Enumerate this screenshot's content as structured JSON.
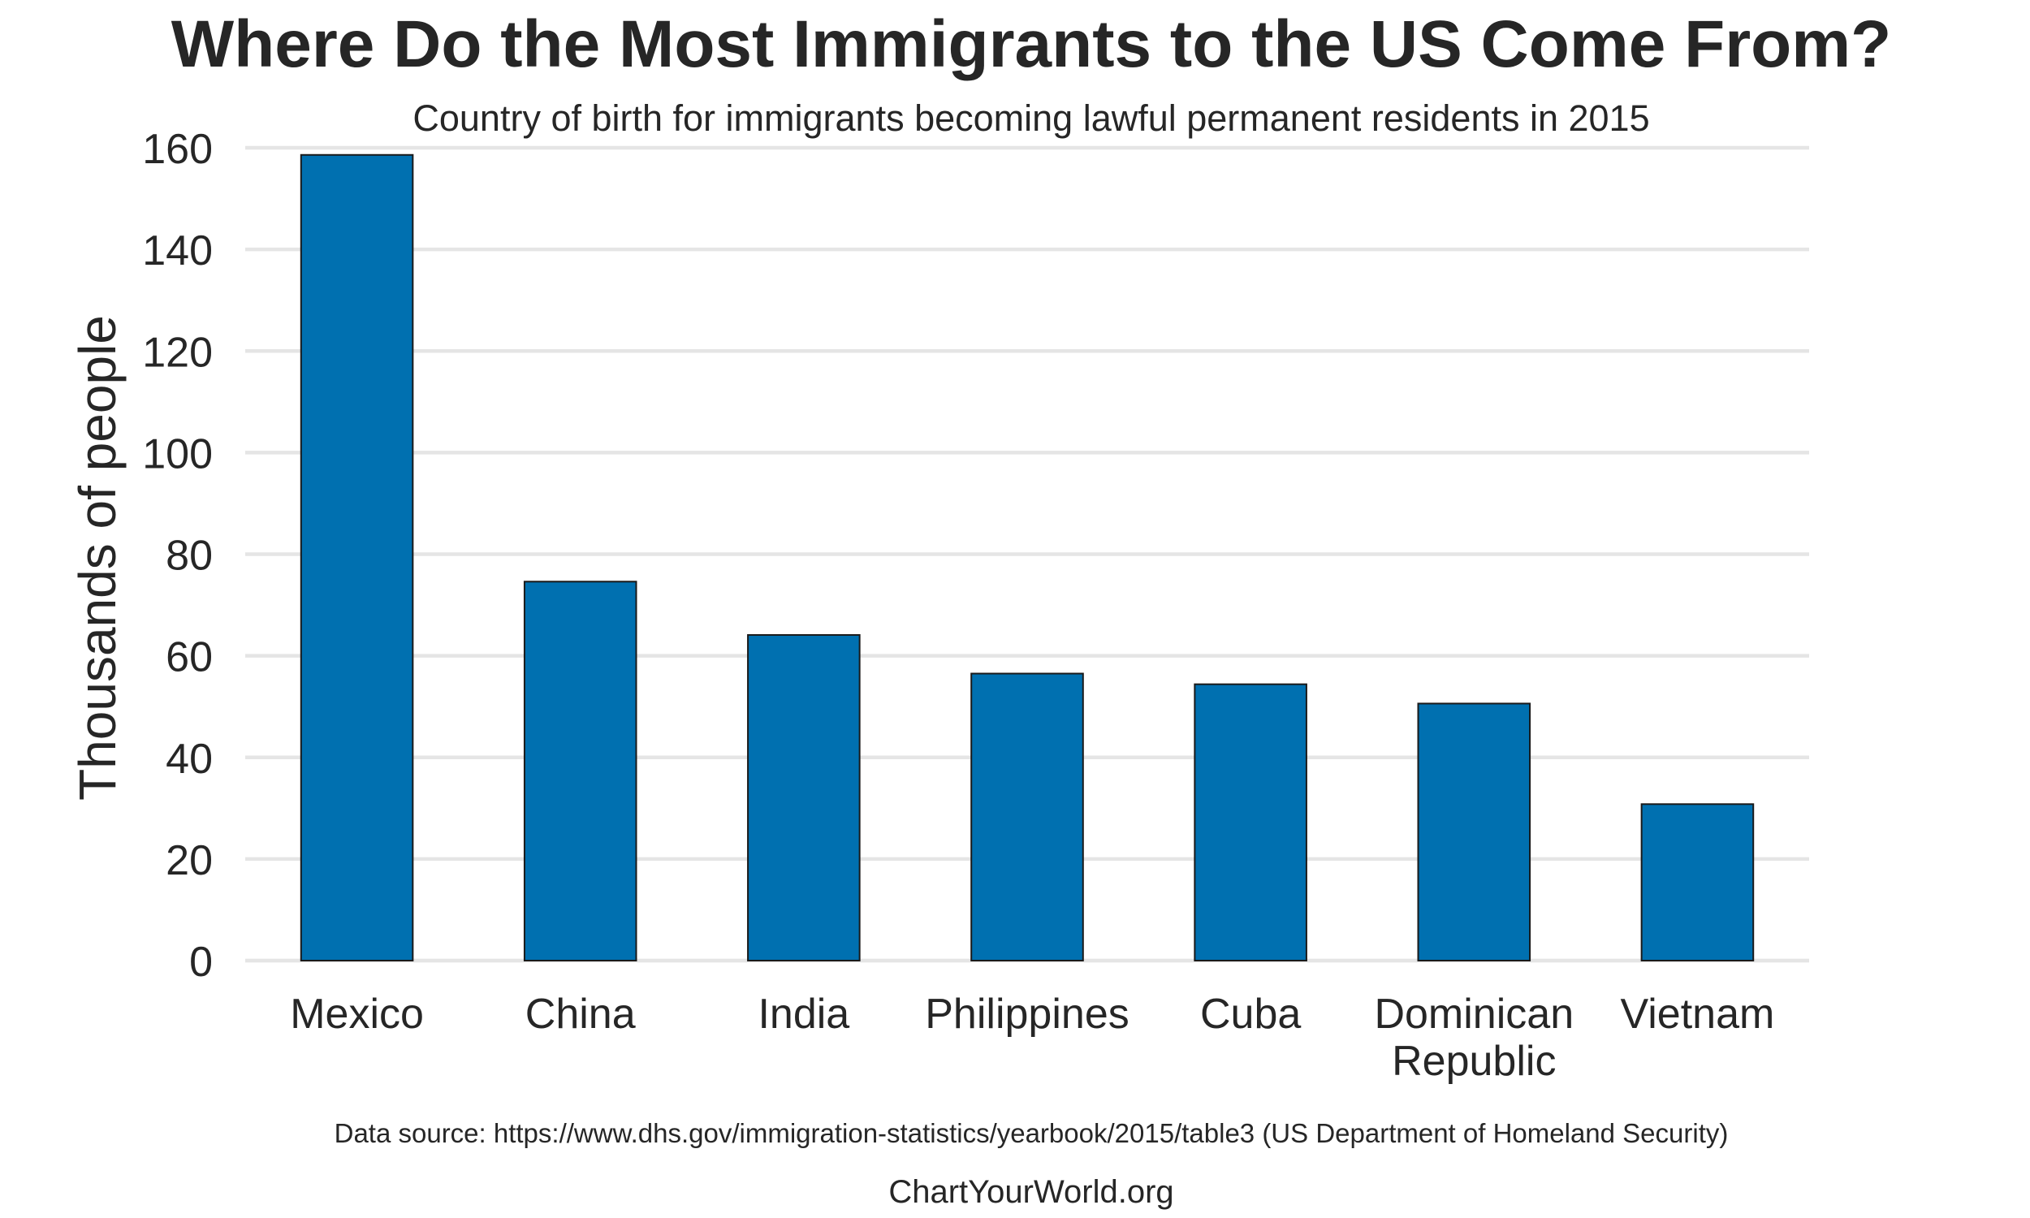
{
  "chart_data": {
    "type": "bar",
    "title": "Where Do the Most Immigrants to the US Come From?",
    "subtitle": "Country of birth for immigrants becoming lawful permanent residents in 2015",
    "xlabel": "",
    "ylabel": "Thousands of people",
    "categories": [
      [
        "Mexico"
      ],
      [
        "China"
      ],
      [
        "India"
      ],
      [
        "Philippines"
      ],
      [
        "Cuba"
      ],
      [
        "Dominican",
        "Republic"
      ],
      [
        "Vietnam"
      ]
    ],
    "values": [
      158.6,
      74.6,
      64.1,
      56.5,
      54.4,
      50.6,
      30.8
    ],
    "ylim": [
      0,
      160
    ],
    "yticks": [
      0,
      20,
      40,
      60,
      80,
      100,
      120,
      140,
      160
    ],
    "grid": true,
    "legend": "none",
    "bar_color": "#0070b0",
    "bar_edge_color": "#1a1a1a",
    "grid_color": "#e5e5e5"
  },
  "footer": {
    "source": "Data source: https://www.dhs.gov/immigration-statistics/yearbook/2015/table3 (US Department of Homeland Security)",
    "credit": "ChartYourWorld.org"
  }
}
